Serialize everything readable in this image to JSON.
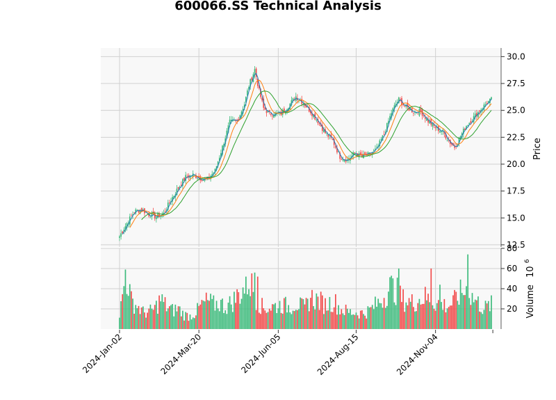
{
  "title": "600066.SS Technical Analysis",
  "chart_data": {
    "type": "candlestick",
    "title": "600066.SS Technical Analysis",
    "price_panel": {
      "ylabel": "Price",
      "ylim": [
        12.3,
        30.8
      ],
      "yticks": [
        "12.5",
        "15.0",
        "17.5",
        "20.0",
        "22.5",
        "25.0",
        "27.5",
        "30.0"
      ],
      "series": [
        {
          "name": "close",
          "color": "#1f77b4"
        },
        {
          "name": "ma_short",
          "color": "#ff7f0e"
        },
        {
          "name": "ma_long",
          "color": "#2ca02c"
        }
      ]
    },
    "volume_panel": {
      "ylabel": "Volume  10^6",
      "ylabel_main": "Volume",
      "ylabel_exp": "10",
      "ylabel_pow": "6",
      "ylim": [
        0,
        80
      ],
      "yticks": [
        "20",
        "40",
        "60",
        "80"
      ]
    },
    "up_color": "#3dbb7c",
    "down_color": "#f24b4b",
    "xtick_labels": [
      "2024-Jan-02",
      "2024-Mar-20",
      "2024-Jun-05",
      "2024-Aug-15",
      "2024-Nov-04"
    ],
    "grid": true,
    "close_anchors": [
      [
        0,
        13.3
      ],
      [
        5,
        14.5
      ],
      [
        10,
        15.6
      ],
      [
        15,
        15.8
      ],
      [
        20,
        15.3
      ],
      [
        25,
        15.1
      ],
      [
        30,
        15.4
      ],
      [
        35,
        16.7
      ],
      [
        40,
        17.8
      ],
      [
        45,
        18.8
      ],
      [
        50,
        19.0
      ],
      [
        55,
        18.7
      ],
      [
        60,
        18.6
      ],
      [
        65,
        19.4
      ],
      [
        70,
        21.6
      ],
      [
        75,
        23.9
      ],
      [
        80,
        24.0
      ],
      [
        85,
        25.6
      ],
      [
        88,
        27.3
      ],
      [
        92,
        28.8
      ],
      [
        95,
        26.8
      ],
      [
        98,
        25.2
      ],
      [
        102,
        24.7
      ],
      [
        110,
        24.7
      ],
      [
        116,
        25.6
      ],
      [
        120,
        26.3
      ],
      [
        125,
        25.7
      ],
      [
        130,
        24.9
      ],
      [
        135,
        24.0
      ],
      [
        140,
        22.9
      ],
      [
        145,
        22.2
      ],
      [
        150,
        20.7
      ],
      [
        155,
        20.4
      ],
      [
        160,
        21.0
      ],
      [
        165,
        20.7
      ],
      [
        170,
        20.9
      ],
      [
        175,
        21.4
      ],
      [
        180,
        22.8
      ],
      [
        185,
        24.8
      ],
      [
        188,
        25.6
      ],
      [
        190,
        26.0
      ],
      [
        195,
        25.3
      ],
      [
        200,
        24.9
      ],
      [
        205,
        24.9
      ],
      [
        210,
        24.0
      ],
      [
        215,
        23.4
      ],
      [
        220,
        23.0
      ],
      [
        225,
        22.0
      ],
      [
        228,
        21.6
      ],
      [
        232,
        22.6
      ],
      [
        236,
        23.6
      ],
      [
        240,
        24.2
      ],
      [
        245,
        25.0
      ],
      [
        250,
        25.7
      ],
      [
        253,
        26.0
      ]
    ],
    "volume_anchors": [
      [
        0,
        16
      ],
      [
        2,
        33
      ],
      [
        4,
        59
      ],
      [
        6,
        48
      ],
      [
        8,
        30
      ],
      [
        12,
        25
      ],
      [
        16,
        18
      ],
      [
        20,
        18
      ],
      [
        24,
        22
      ],
      [
        28,
        32
      ],
      [
        32,
        24
      ],
      [
        36,
        20
      ],
      [
        40,
        22
      ],
      [
        44,
        15
      ],
      [
        48,
        14
      ],
      [
        52,
        18
      ],
      [
        56,
        26
      ],
      [
        60,
        30
      ],
      [
        64,
        26
      ],
      [
        68,
        28
      ],
      [
        72,
        24
      ],
      [
        76,
        28
      ],
      [
        80,
        35
      ],
      [
        84,
        42
      ],
      [
        88,
        52
      ],
      [
        90,
        46
      ],
      [
        94,
        30
      ],
      [
        98,
        22
      ],
      [
        104,
        24
      ],
      [
        110,
        26
      ],
      [
        116,
        24
      ],
      [
        120,
        28
      ],
      [
        126,
        22
      ],
      [
        130,
        34
      ],
      [
        136,
        30
      ],
      [
        140,
        26
      ],
      [
        146,
        30
      ],
      [
        150,
        22
      ],
      [
        156,
        18
      ],
      [
        160,
        18
      ],
      [
        166,
        17
      ],
      [
        170,
        20
      ],
      [
        176,
        28
      ],
      [
        180,
        35
      ],
      [
        184,
        45
      ],
      [
        188,
        42
      ],
      [
        192,
        32
      ],
      [
        196,
        30
      ],
      [
        200,
        28
      ],
      [
        204,
        32
      ],
      [
        208,
        34
      ],
      [
        212,
        30
      ],
      [
        216,
        28
      ],
      [
        220,
        26
      ],
      [
        224,
        25
      ],
      [
        228,
        30
      ],
      [
        232,
        38
      ],
      [
        236,
        42
      ],
      [
        240,
        34
      ],
      [
        244,
        28
      ],
      [
        248,
        22
      ],
      [
        253,
        26
      ]
    ],
    "volume_spikes": [
      [
        4,
        59
      ],
      [
        86,
        52
      ],
      [
        92,
        56
      ],
      [
        94,
        52
      ],
      [
        190,
        60
      ],
      [
        212,
        60
      ],
      [
        218,
        44
      ],
      [
        237,
        74
      ]
    ],
    "num_bars": 254
  }
}
